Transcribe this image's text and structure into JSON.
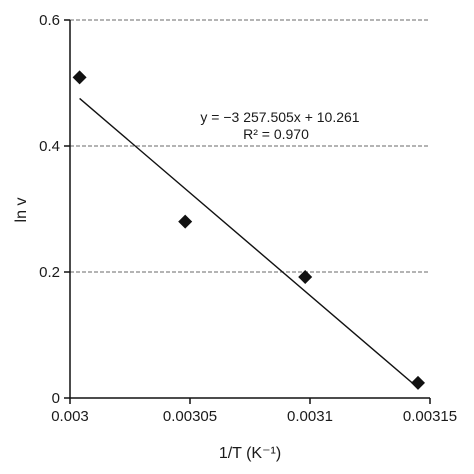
{
  "chart_data": {
    "type": "scatter",
    "xlabel": "1/T (K⁻¹)",
    "ylabel": "ln v",
    "xlim": [
      0.003,
      0.00315
    ],
    "ylim": [
      0,
      0.6
    ],
    "x_ticks": [
      0.003,
      0.00305,
      0.0031,
      0.00315
    ],
    "x_tick_labels": [
      "0.003",
      "0.00305",
      "0.0031",
      "0.00315"
    ],
    "y_ticks": [
      0,
      0.2,
      0.4,
      0.6
    ],
    "y_tick_labels": [
      "0",
      "0.2",
      "0.4",
      "0.6"
    ],
    "grid": "horizontal dashed",
    "marker": "diamond",
    "marker_color": "#111111",
    "points": [
      {
        "x": 0.003004,
        "y": 0.509
      },
      {
        "x": 0.003048,
        "y": 0.28
      },
      {
        "x": 0.003098,
        "y": 0.192
      },
      {
        "x": 0.003145,
        "y": 0.024
      }
    ],
    "trendline": {
      "slope": -3257.505,
      "intercept": 10.261,
      "x_start": 0.003004,
      "x_end": 0.003145,
      "color": "#111111"
    },
    "annotations": {
      "equation": "y = −3 257.505x + 10.261",
      "r_squared": "R² = 0.970"
    }
  }
}
